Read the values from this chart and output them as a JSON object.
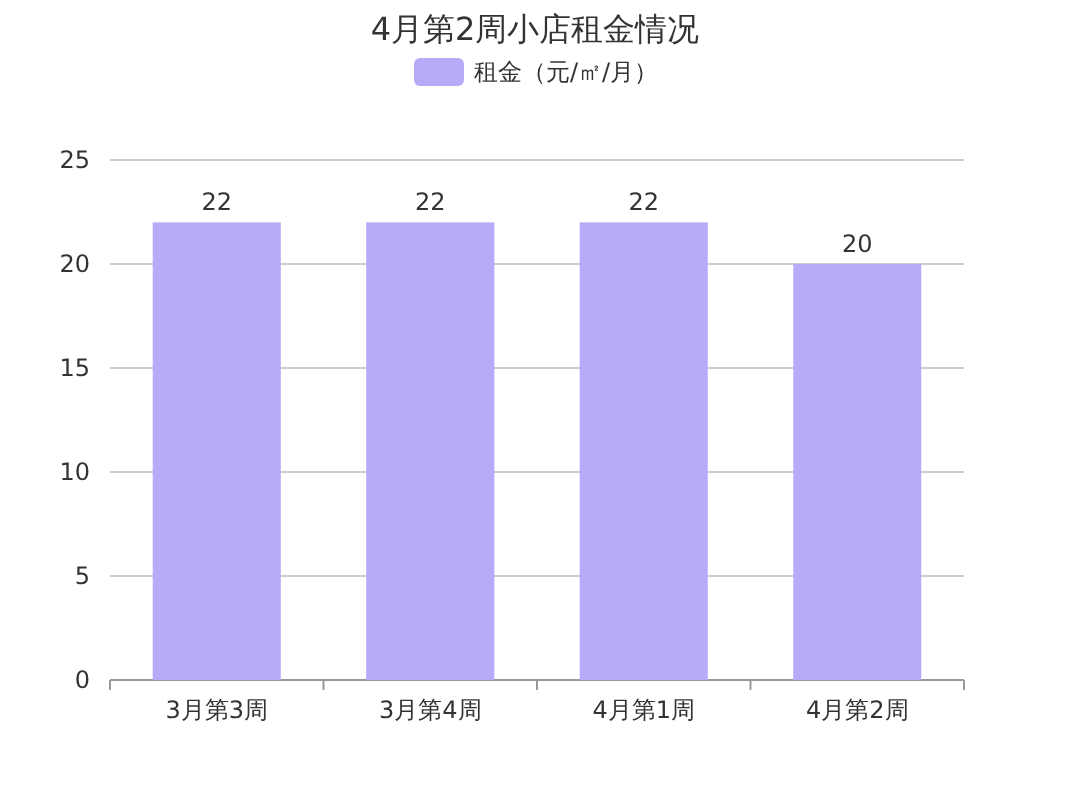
{
  "chart_data": {
    "type": "bar",
    "title": "4月第2周小店租金情况",
    "categories": [
      "3月第3周",
      "3月第4周",
      "4月第1周",
      "4月第2周"
    ],
    "series": [
      {
        "name": "租金（元/㎡/月）",
        "color": "#b8aaf8",
        "values": [
          22,
          22,
          22,
          20
        ]
      }
    ],
    "ylim": [
      0,
      25
    ],
    "yticks": [
      0,
      5,
      10,
      15,
      20,
      25
    ],
    "grid": "y",
    "legend": "top",
    "data_labels": true
  }
}
